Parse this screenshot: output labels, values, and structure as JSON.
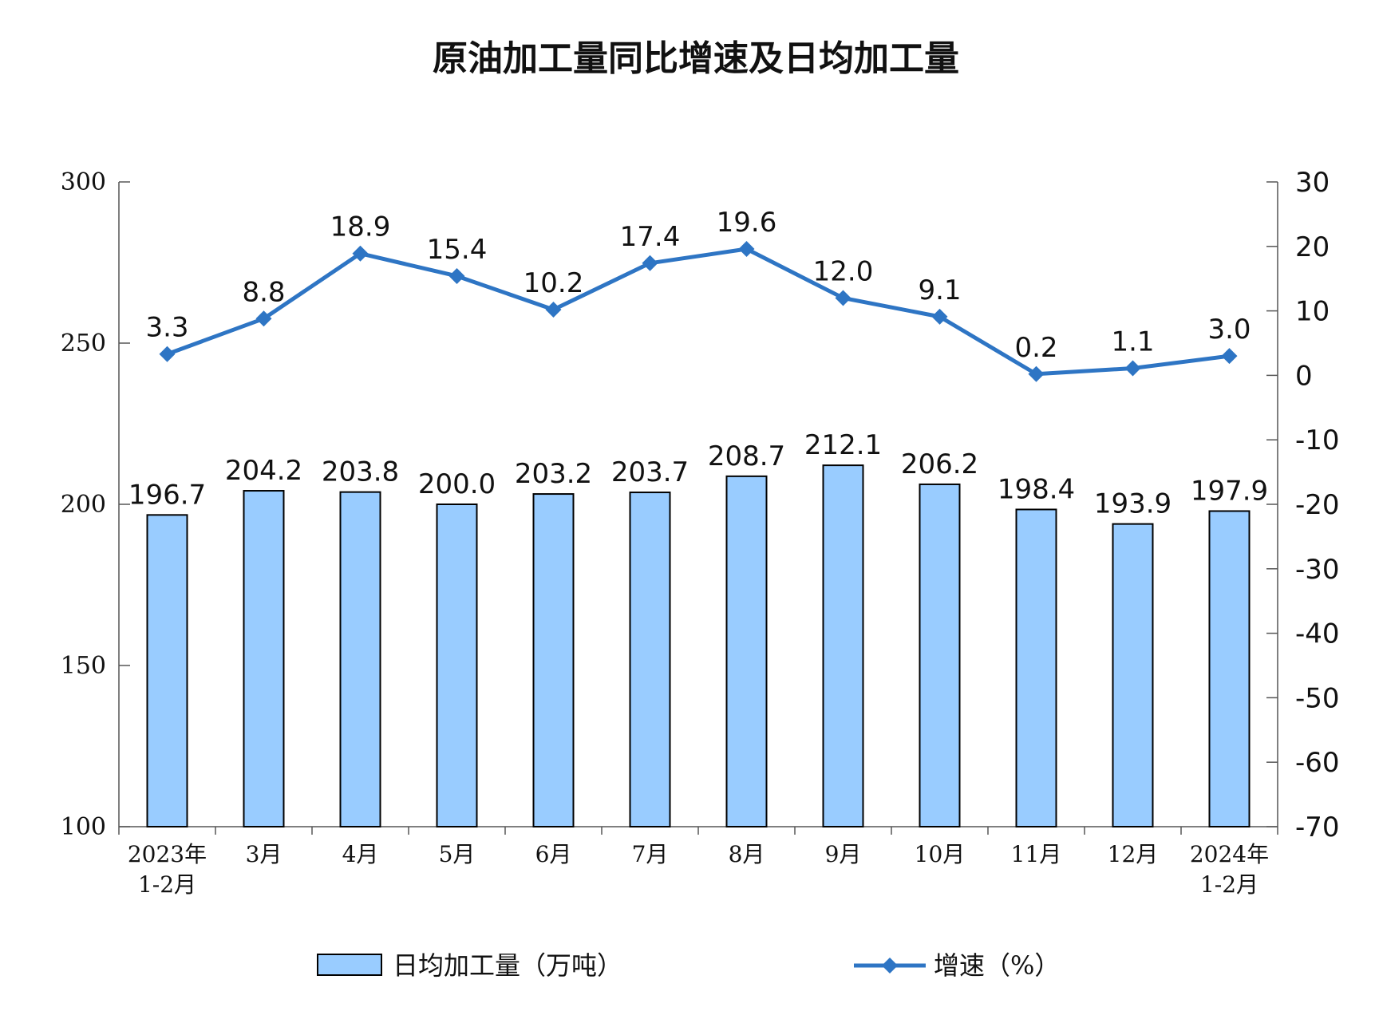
{
  "chart_data": {
    "type": "bar+line",
    "title": "原油加工量同比增速及日均加工量",
    "categories": [
      [
        "2023年",
        "1-2月"
      ],
      [
        "3月"
      ],
      [
        "4月"
      ],
      [
        "5月"
      ],
      [
        "6月"
      ],
      [
        "7月"
      ],
      [
        "8月"
      ],
      [
        "9月"
      ],
      [
        "10月"
      ],
      [
        "11月"
      ],
      [
        "12月"
      ],
      [
        "2024年",
        "1-2月"
      ]
    ],
    "series": [
      {
        "name": "日均加工量（万吨）",
        "type": "bar",
        "axis": "left",
        "color": "#99CCFF",
        "values": [
          196.7,
          204.2,
          203.8,
          200.0,
          203.2,
          203.7,
          208.7,
          212.1,
          206.2,
          198.4,
          193.9,
          197.9
        ],
        "labels": [
          "196.7",
          "204.2",
          "203.8",
          "200.0",
          "203.2",
          "203.7",
          "208.7",
          "212.1",
          "206.2",
          "198.4",
          "193.9",
          "197.9"
        ]
      },
      {
        "name": "增速（%）",
        "type": "line",
        "axis": "right",
        "color": "#2E75C4",
        "marker": "diamond",
        "values": [
          3.3,
          8.8,
          18.9,
          15.4,
          10.2,
          17.4,
          19.6,
          12.0,
          9.1,
          0.2,
          1.1,
          3.0
        ],
        "labels": [
          "3.3",
          "8.8",
          "18.9",
          "15.4",
          "10.2",
          "17.4",
          "19.6",
          "12.0",
          "9.1",
          "0.2",
          "1.1",
          "3.0"
        ]
      }
    ],
    "y_left": {
      "lim": [
        100,
        300
      ],
      "ticks": [
        "100",
        "150",
        "200",
        "250",
        "300"
      ]
    },
    "y_right": {
      "lim": [
        -70,
        30
      ],
      "ticks": [
        "-70",
        "-60",
        "-50",
        "-40",
        "-30",
        "-20",
        "-10",
        "0",
        "10",
        "20",
        "30"
      ]
    },
    "grid": false,
    "legend": "bottom"
  }
}
